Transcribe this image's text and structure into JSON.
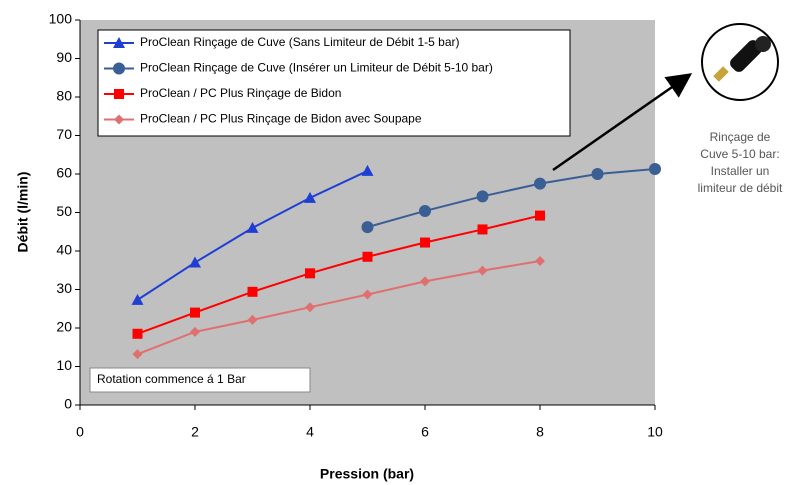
{
  "chart_data": {
    "type": "line",
    "xlabel": "Pression (bar)",
    "ylabel": "Débit (l/min)",
    "xlim": [
      0,
      10
    ],
    "xticks": [
      0,
      2,
      4,
      6,
      8,
      10
    ],
    "ylim": [
      0,
      100
    ],
    "yticks": [
      0,
      10,
      20,
      30,
      40,
      50,
      60,
      70,
      80,
      90,
      100
    ],
    "series": [
      {
        "name": "ProClean Rinçage de Cuve (Sans Limiteur de Débit 1-5 bar)",
        "color": "#1f3fd4",
        "marker": "triangle",
        "x": [
          1,
          2,
          3,
          4,
          5
        ],
        "values": [
          27.3,
          37,
          46,
          53.8,
          60.8
        ]
      },
      {
        "name": "ProClean Rinçage de Cuve (Insérer un Limiteur de Débit 5-10 bar)",
        "color": "#3a5f95",
        "marker": "circle",
        "x": [
          5,
          6,
          7,
          8,
          9,
          10
        ],
        "values": [
          46.2,
          50.4,
          54.2,
          57.5,
          60,
          61.3
        ]
      },
      {
        "name": "ProClean / PC Plus Rinçage de Bidon",
        "color": "#ff0000",
        "marker": "square",
        "x": [
          1,
          2,
          3,
          4,
          5,
          6,
          7,
          8
        ],
        "values": [
          18.5,
          24,
          29.4,
          34.2,
          38.5,
          42.2,
          45.6,
          49.2
        ]
      },
      {
        "name": "ProClean / PC Plus Rinçage de Bidon avec Soupape",
        "color": "#e07070",
        "marker": "diamond",
        "x": [
          1,
          2,
          3,
          4,
          5,
          6,
          7,
          8
        ],
        "values": [
          13.2,
          19,
          22.1,
          25.4,
          28.7,
          32.1,
          34.9,
          37.4
        ]
      }
    ],
    "annotations": [
      "Rotation commence á 1 Bar"
    ],
    "side_note": [
      "Rinçage de",
      "Cuve 5-10 bar:",
      "Installer un",
      "limiteur de débit"
    ]
  }
}
